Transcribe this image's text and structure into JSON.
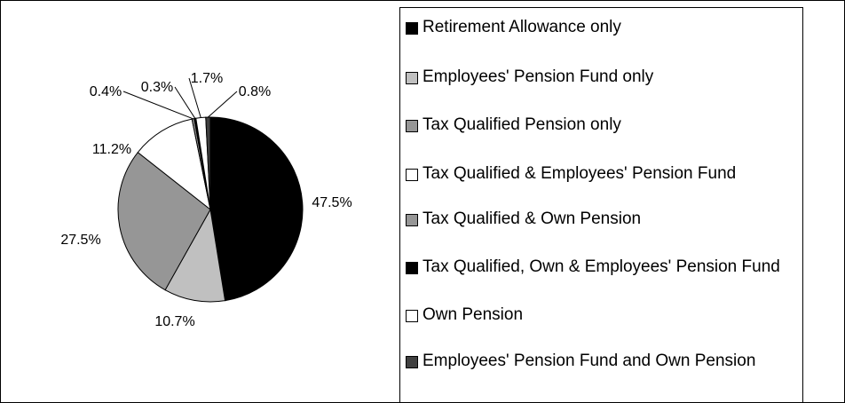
{
  "chart_data": {
    "type": "pie",
    "categories": [
      "Retirement Allowance only",
      "Employees' Pension Fund only",
      "Tax Qualified Pension only",
      "Tax Qualified & Employees' Pension Fund",
      "Tax Qualified & Own Pension",
      "Tax Qualified, Own & Employees' Pension Fund",
      "Own Pension",
      "Employees' Pension Fund and Own Pension"
    ],
    "values": [
      47.5,
      10.7,
      27.5,
      11.2,
      0.4,
      0.3,
      1.7,
      0.8
    ],
    "value_labels": [
      "47.5%",
      "10.7%",
      "27.5%",
      "11.2%",
      "0.4%",
      "0.3%",
      "1.7%",
      "0.8%"
    ],
    "colors": [
      "#000000",
      "#c0c0c0",
      "#969696",
      "#ffffff",
      "#969696",
      "#000000",
      "#ffffff",
      "#404040"
    ],
    "legend": "right"
  }
}
